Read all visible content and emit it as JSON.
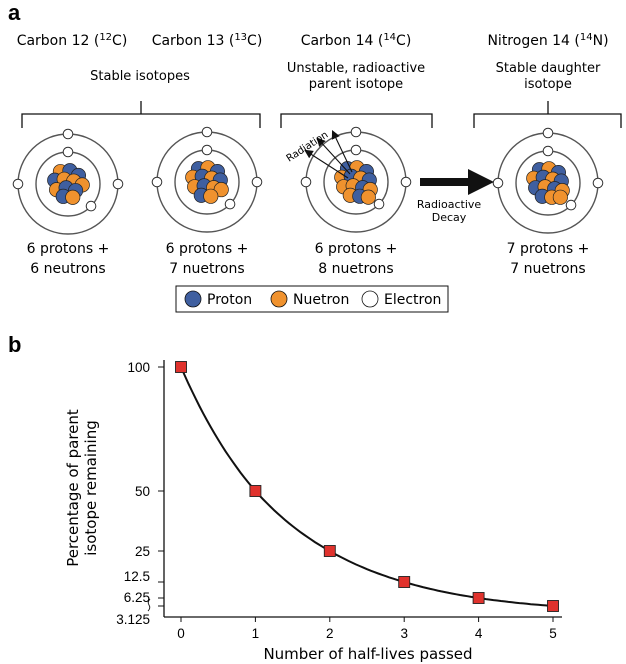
{
  "panel_a_label": "a",
  "panel_b_label": "b",
  "isotopes": [
    {
      "name": "Carbon 12 (",
      "sup": "12",
      "sym": "C)",
      "line1": "6 protons +",
      "line2": "6 neutrons"
    },
    {
      "name": "Carbon 13 (",
      "sup": "13",
      "sym": "C)",
      "line1": "6 protons +",
      "line2": "7 nuetrons"
    },
    {
      "name": "Carbon 14 (",
      "sup": "14",
      "sym": "C)",
      "line1": "6 protons +",
      "line2": "8 nuetrons"
    },
    {
      "name": "Nitrogen 14 (",
      "sup": "14",
      "sym": "N)",
      "line1": "7 protons +",
      "line2": "7 nuetrons"
    }
  ],
  "groups": {
    "stable": "Stable isotopes",
    "unstable_1": "Unstable, radioactive",
    "unstable_2": "parent isotope",
    "daughter_1": "Stable daughter",
    "daughter_2": "isotope"
  },
  "radiation_label": "Radiation",
  "decay_label_1": "Radioactive",
  "decay_label_2": "Decay",
  "legend": {
    "proton": "Proton",
    "neutron": "Nuetron",
    "electron": "Electron"
  },
  "colors": {
    "proton": "#3f5fa0",
    "neutron": "#f0922e",
    "electron": "#ffffff",
    "marker": "#e0322d",
    "line": "#111111"
  },
  "chart_data": {
    "type": "line",
    "title": "",
    "xlabel": "Number of half-lives passed",
    "ylabel_line1": "Percentage of parent",
    "ylabel_line2": "isotope remaining",
    "x": [
      0,
      1,
      2,
      3,
      4,
      5
    ],
    "values": [
      100,
      50,
      25,
      12.5,
      6.25,
      3.125
    ],
    "x_tick_labels": [
      "0",
      "1",
      "2",
      "3",
      "4",
      "5"
    ],
    "y_tick_labels": [
      "100",
      "50",
      "25",
      "12.5",
      "6.25",
      "3.125"
    ],
    "ylim": [
      3.125,
      100
    ],
    "xlim": [
      0,
      5
    ]
  }
}
